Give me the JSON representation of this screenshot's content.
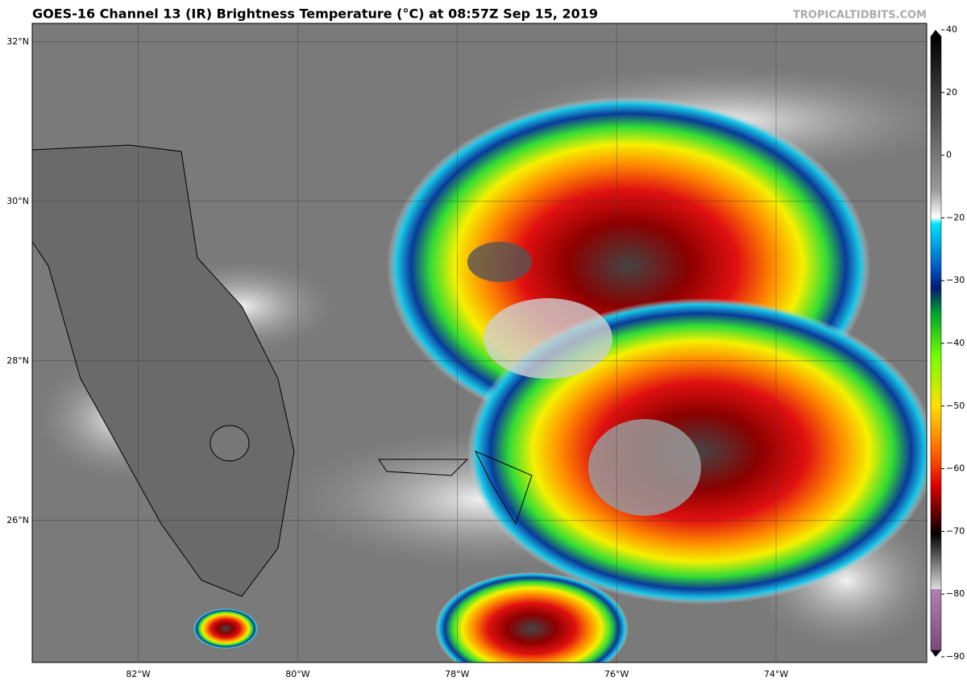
{
  "header": {
    "title": "GOES-16 Channel 13 (IR) Brightness Temperature (°C) at 08:57Z Sep 15, 2019",
    "credit": "TROPICALTIDBITS.COM"
  },
  "map": {
    "lon_range": [
      -83.33,
      -72.11
    ],
    "lat_range": [
      24.22,
      32.23
    ],
    "lat_lines": [
      {
        "value": 32,
        "label": "32°N"
      },
      {
        "value": 30,
        "label": "30°N"
      },
      {
        "value": 28,
        "label": "28°N"
      },
      {
        "value": 26,
        "label": "26°N"
      }
    ],
    "lon_lines": [
      {
        "value": -82,
        "label": "82°W"
      },
      {
        "value": -80,
        "label": "80°W"
      },
      {
        "value": -78,
        "label": "78°W"
      },
      {
        "value": -76,
        "label": "76°W"
      },
      {
        "value": -74,
        "label": "74°W"
      }
    ]
  },
  "colorbar": {
    "range": [
      -90,
      40
    ],
    "ticks": [
      40,
      20,
      0,
      {
        "value": -20,
        "label": "−20"
      },
      {
        "value": -30,
        "label": "−30"
      },
      {
        "value": -40,
        "label": "−40"
      },
      {
        "value": -50,
        "label": "−50"
      },
      {
        "value": -60,
        "label": "−60"
      },
      {
        "value": -70,
        "label": "−70"
      },
      {
        "value": -80,
        "label": "−80"
      },
      {
        "value": -90,
        "label": "−90"
      }
    ]
  }
}
